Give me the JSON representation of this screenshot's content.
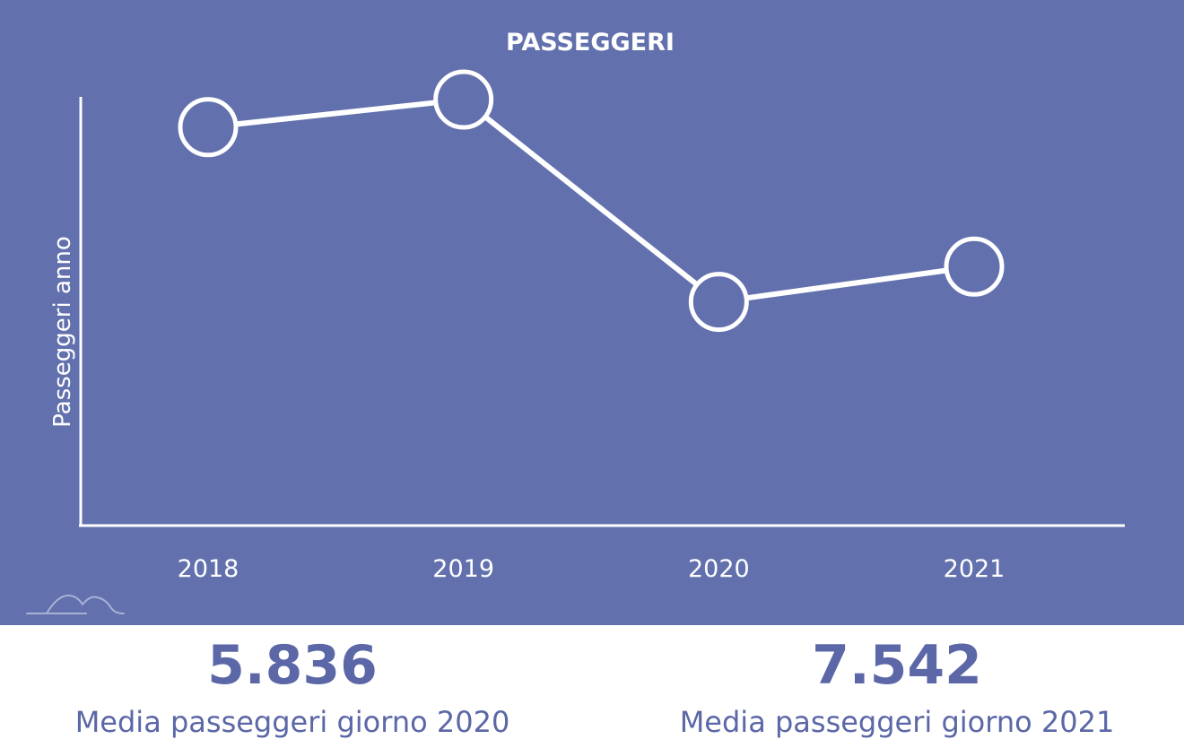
{
  "chart_data": {
    "type": "line",
    "title": "PASSEGGERI",
    "xlabel": "",
    "ylabel": "Passeggeri anno",
    "categories": [
      "2018",
      "2019",
      "2020",
      "2021"
    ],
    "series": [
      {
        "values": [
          2.6,
          2.78,
          1.46,
          1.69
        ]
      }
    ],
    "ylim": [
      0,
      3.43
    ],
    "grid": false,
    "marker": "circle",
    "line_color": "#ffffff",
    "background": "#6271ad"
  },
  "stats": [
    {
      "value": "5.836",
      "label": "Media passeggeri giorno 2020"
    },
    {
      "value": "7.542",
      "label": "Media passeggeri giorno 2021"
    }
  ],
  "colors": {
    "panel": "#6271ad",
    "accent_text": "#5b67a6"
  },
  "logo": {
    "icon": "mountain-logo-icon"
  }
}
